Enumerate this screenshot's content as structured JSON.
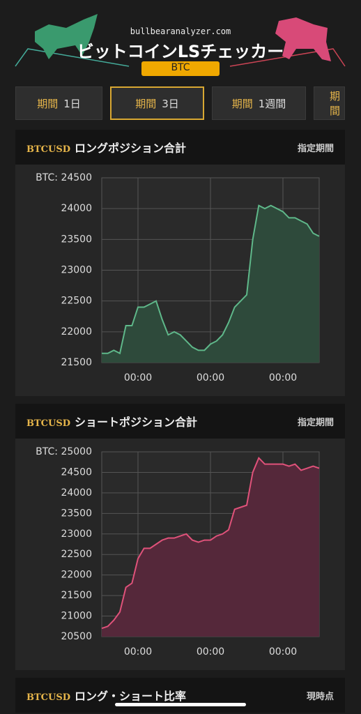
{
  "header": {
    "site": "bullbearanalyzer.com",
    "title": "ビットコインLSチェッカー",
    "badge": "BTC"
  },
  "tabs": [
    {
      "prefix": "期間",
      "label": "1日"
    },
    {
      "prefix": "期間",
      "label": "3日"
    },
    {
      "prefix": "期間",
      "label": "1週間"
    },
    {
      "prefix": "期間"
    }
  ],
  "chart_data": [
    {
      "type": "area",
      "symbol": "BTCUSD",
      "title": "ロングポジション合計",
      "period": "指定期間",
      "color": "#5fb88a",
      "fill": "#2e4a3b",
      "categories": [
        null,
        null,
        null,
        null,
        null,
        null,
        "00:00",
        null,
        null,
        null,
        null,
        null,
        null,
        null,
        null,
        null,
        null,
        null,
        "00:00",
        null,
        null,
        null,
        null,
        null,
        null,
        null,
        null,
        null,
        null,
        null,
        "00:00",
        null,
        null,
        null,
        null,
        null,
        null
      ],
      "values": [
        21650,
        21650,
        21700,
        21650,
        22100,
        22100,
        22400,
        22400,
        22450,
        22500,
        22200,
        21950,
        22000,
        21950,
        21850,
        21750,
        21700,
        21700,
        21800,
        21850,
        21950,
        22150,
        22400,
        22500,
        22600,
        23500,
        24050,
        24000,
        24050,
        24000,
        23950,
        23850,
        23850,
        23800,
        23750,
        23600,
        23550
      ],
      "ylim": [
        21500,
        24500
      ],
      "yticks": [
        21500,
        22000,
        22500,
        23000,
        23500,
        24000,
        {
          "value": 24500,
          "label": "BTC: 24500"
        }
      ],
      "grid": true
    },
    {
      "type": "area",
      "symbol": "BTCUSD",
      "title": "ショートポジション合計",
      "period": "指定期間",
      "color": "#e0527a",
      "fill": "#55283a",
      "categories": [
        null,
        null,
        null,
        null,
        null,
        null,
        "00:00",
        null,
        null,
        null,
        null,
        null,
        null,
        null,
        null,
        null,
        null,
        null,
        "00:00",
        null,
        null,
        null,
        null,
        null,
        null,
        null,
        null,
        null,
        null,
        null,
        "00:00",
        null,
        null,
        null,
        null,
        null,
        null
      ],
      "values": [
        20700,
        20750,
        20900,
        21100,
        21700,
        21800,
        22400,
        22650,
        22650,
        22750,
        22850,
        22900,
        22900,
        22950,
        23000,
        22850,
        22800,
        22850,
        22850,
        22950,
        23000,
        23100,
        23600,
        23650,
        23700,
        24500,
        24850,
        24700,
        24700,
        24700,
        24700,
        24650,
        24700,
        24550,
        24600,
        24650,
        24600
      ],
      "ylim": [
        20500,
        25000
      ],
      "yticks": [
        20500,
        21000,
        21500,
        22000,
        22500,
        23000,
        23500,
        24000,
        24500,
        {
          "value": 25000,
          "label": "BTC: 25000"
        }
      ],
      "grid": true
    }
  ],
  "footer_panel": {
    "symbol": "BTCUSD",
    "title": "ロング・ショート比率",
    "period": "現時点"
  }
}
